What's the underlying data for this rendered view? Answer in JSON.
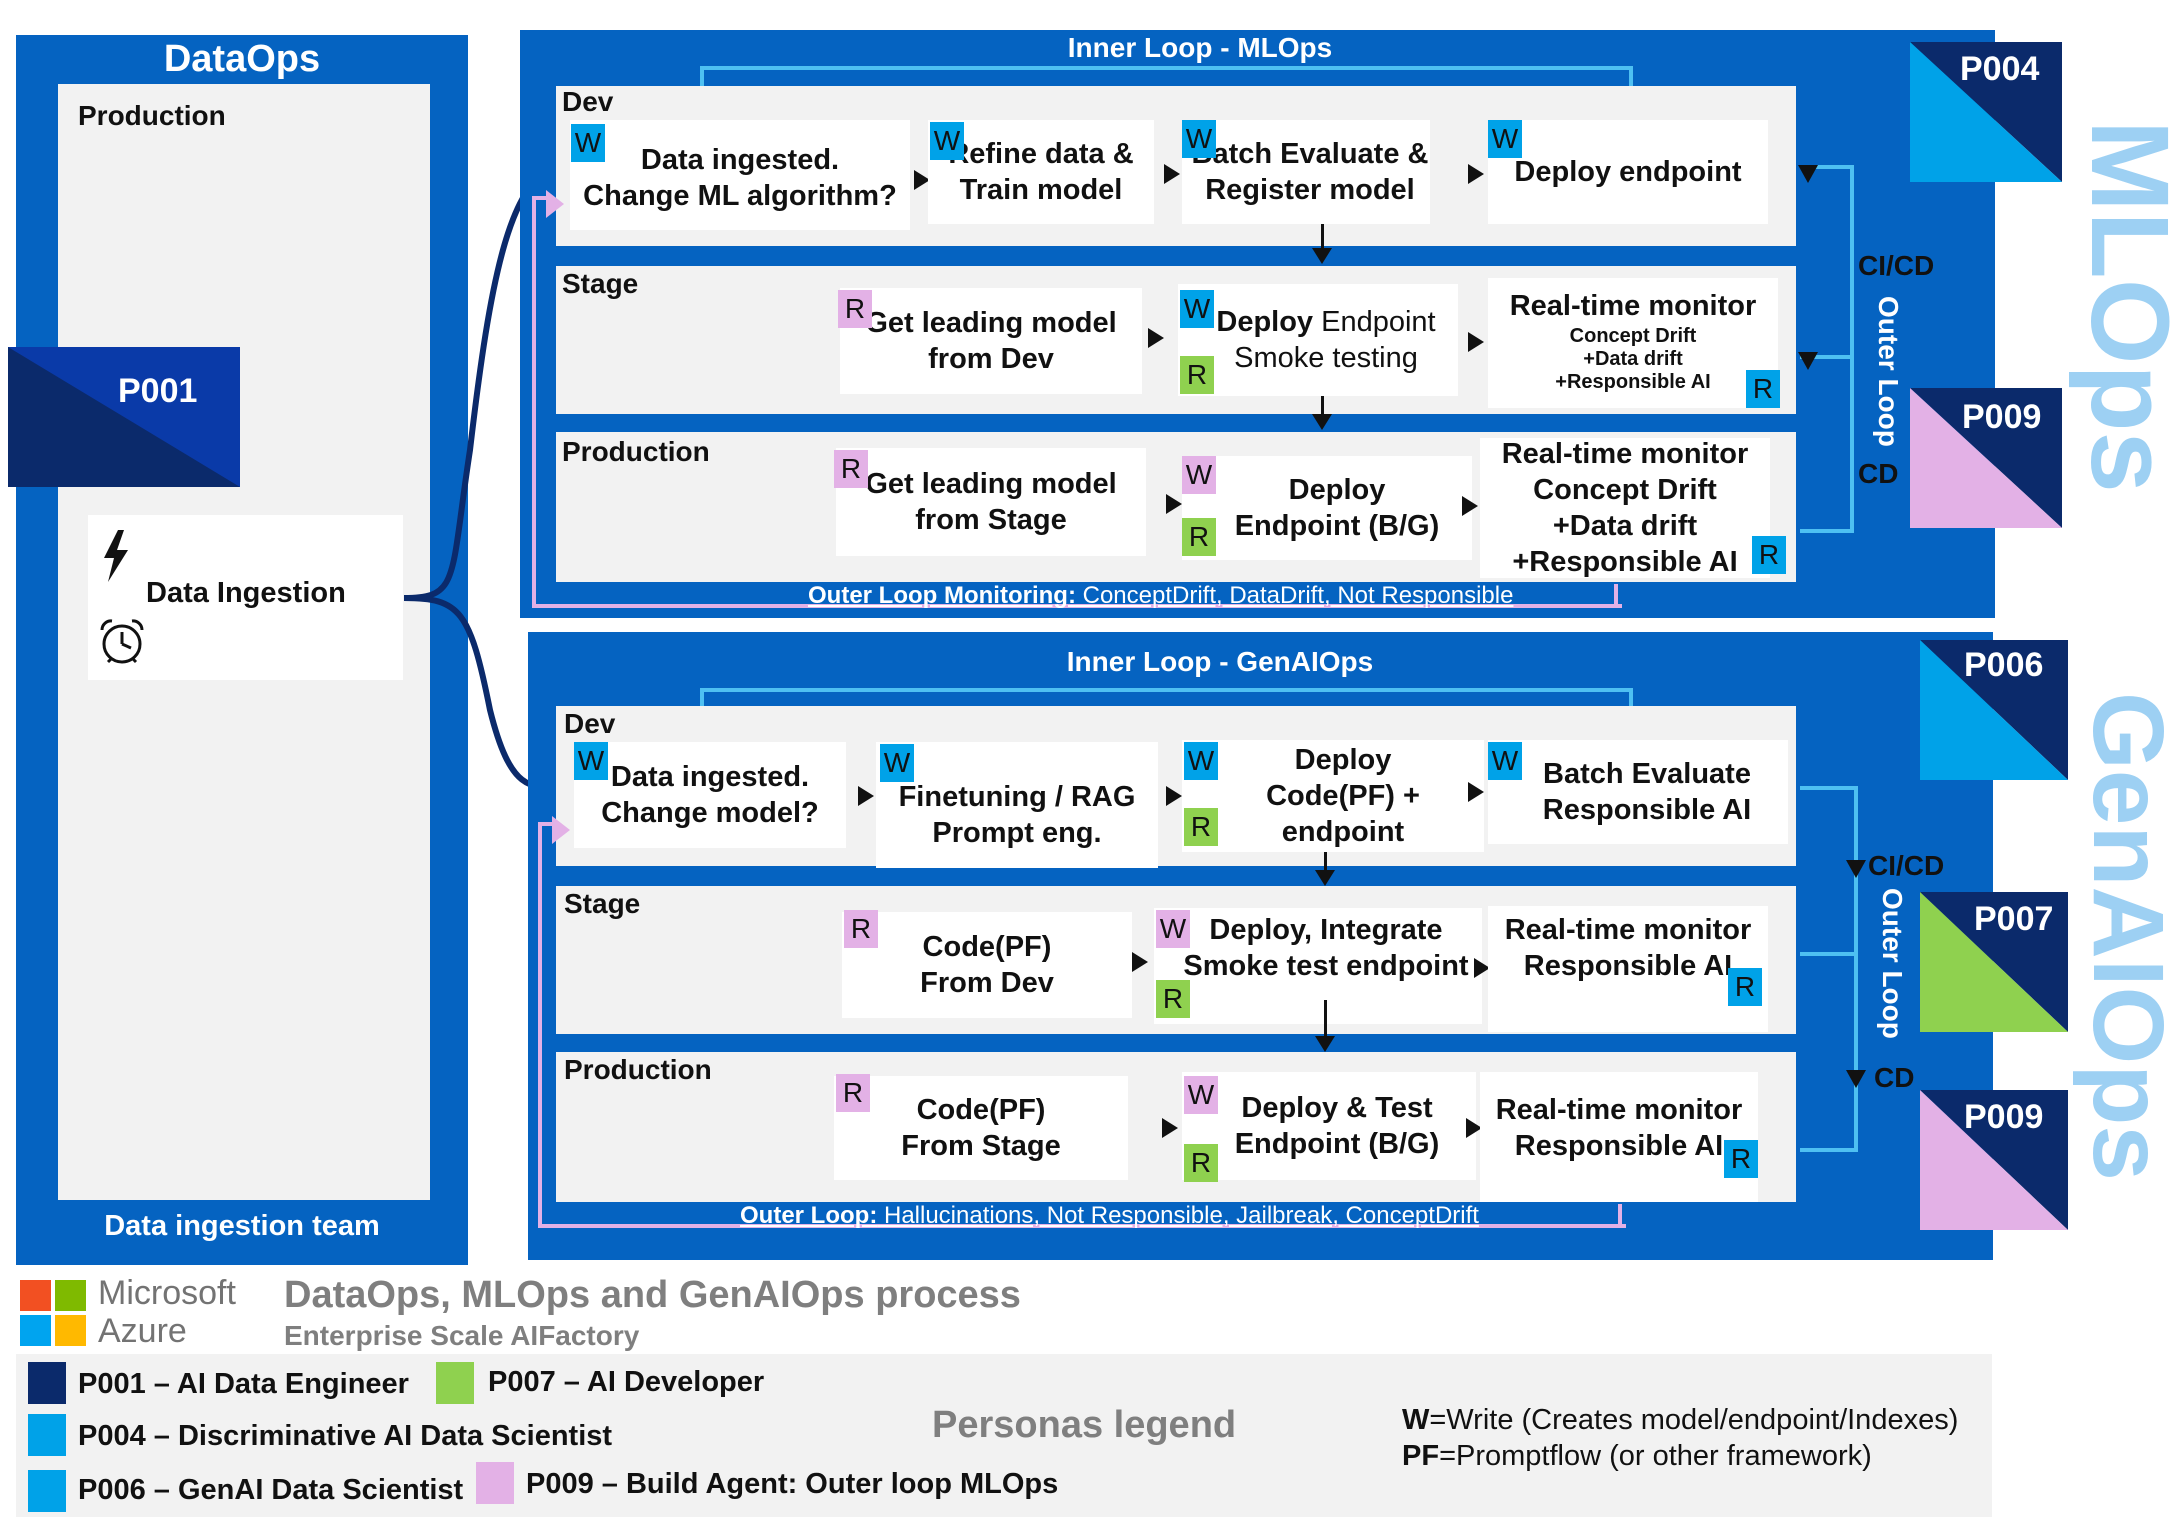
{
  "dataops": {
    "title": "DataOps",
    "production_label": "Production",
    "persona": "P001",
    "ingestion_card": "Data Ingestion",
    "team": "Data ingestion team"
  },
  "mlops": {
    "inner_loop_title": "Inner Loop - MLOps",
    "side_title": "MLOps",
    "persona_top": "P004",
    "persona_bottom": "P009",
    "cicd": "CI/CD",
    "outer_loop": "Outer Loop",
    "cd": "CD",
    "dev": {
      "label": "Dev",
      "c1": "Data ingested.\nChange ML algorithm?",
      "c2": "Refine data &\nTrain model",
      "c3": "Batch Evaluate &\nRegister model",
      "c4": "Deploy endpoint"
    },
    "stage": {
      "label": "Stage",
      "c1": "Get leading model\nfrom Dev",
      "c2_bold": "Deploy",
      "c2_rest": " Endpoint",
      "c2_line2": "Smoke testing",
      "c3_title": "Real-time monitor",
      "c3_l1": "Concept Drift",
      "c3_l2": "+Data drift",
      "c3_l3": "+Responsible AI"
    },
    "production": {
      "label": "Production",
      "c1": "Get leading model\nfrom Stage",
      "c2": "Deploy\nEndpoint (B/G)",
      "c3": "Real-time monitor\nConcept Drift\n+Data drift\n+Responsible AI"
    },
    "outer_label": "Outer Loop Monitoring:",
    "outer_text": " ConceptDrift, DataDrift, Not Responsible"
  },
  "genaiops": {
    "inner_loop_title": "Inner Loop - GenAIOps",
    "side_title": "GenAIOps",
    "persona_top": "P006",
    "persona_mid": "P007",
    "persona_bottom": "P009",
    "cicd": "CI/CD",
    "outer_loop": "Outer Loop",
    "cd": "CD",
    "dev": {
      "label": "Dev",
      "c1": "Data ingested.\nChange model?",
      "c2": "Finetuning / RAG\nPrompt eng.",
      "c3": "Deploy\nCode(PF) +\nendpoint",
      "c4": "Batch Evaluate\nResponsible AI"
    },
    "stage": {
      "label": "Stage",
      "c1": "Code(PF)\nFrom Dev",
      "c2": "Deploy, Integrate\nSmoke test endpoint",
      "c3": "Real-time monitor\nResponsible AI"
    },
    "production": {
      "label": "Production",
      "c1": "Code(PF)\nFrom Stage",
      "c2": "Deploy & Test\nEndpoint (B/G)",
      "c3": "Real-time monitor\nResponsible AI"
    },
    "outer_label": "Outer Loop:",
    "outer_text": " Hallucinations, Not Responsible, Jailbreak, ConceptDrift"
  },
  "badges": {
    "W": "W",
    "R": "R"
  },
  "footer": {
    "ms_line1": "Microsoft",
    "ms_line2": "Azure",
    "title": "DataOps, MLOps and GenAIOps process",
    "subtitle": "Enterprise Scale AIFactory",
    "legend_title": "Personas legend",
    "p001": "P001 – AI Data Engineer",
    "p004": "P004 – Discriminative AI Data Scientist",
    "p006": "P006 – GenAI Data Scientist",
    "p007": "P007 – AI Developer",
    "p009": "P009 – Build Agent: Outer loop MLOps",
    "w_key": "W",
    "w_text": "=Write (Creates model/endpoint/Indexes)",
    "pf_key": "PF",
    "pf_text": "=Promptflow (or other framework)"
  },
  "colors": {
    "blue": "#0563c1",
    "navy": "#0b2a6b",
    "cyan": "#00a2e8",
    "pink": "#e3b1e6",
    "green": "#8fd14f"
  }
}
